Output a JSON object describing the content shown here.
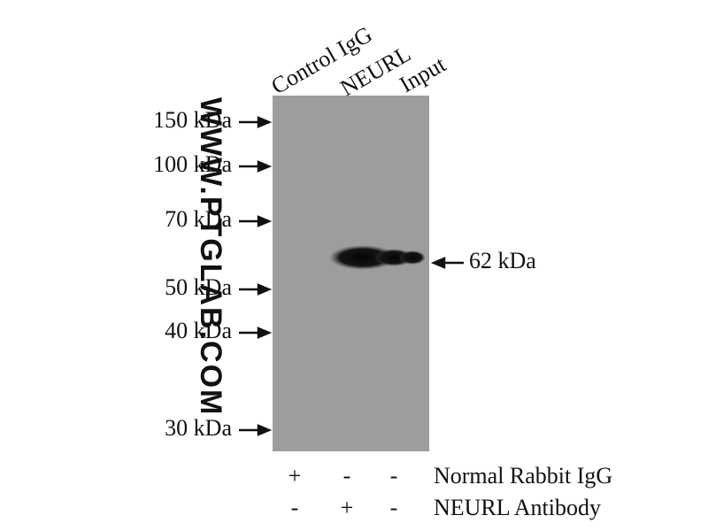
{
  "lanes": [
    "Control IgG",
    "NEURL",
    "Input"
  ],
  "markers": [
    "150 kDa",
    "100 kDa",
    "70 kDa",
    "50 kDa",
    "40 kDa",
    "30 kDa"
  ],
  "band_label": "62 kDa",
  "watermark": "WWW.PTGLAB.COM",
  "conditions": [
    {
      "signs": [
        "+",
        "-",
        "-"
      ],
      "label": "Normal Rabbit IgG"
    },
    {
      "signs": [
        "-",
        "+",
        "-"
      ],
      "label": "NEURL Antibody"
    }
  ]
}
